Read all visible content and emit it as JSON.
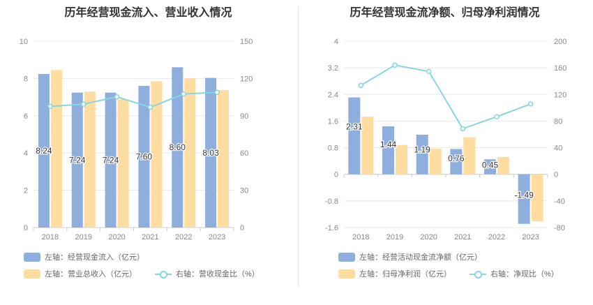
{
  "colors": {
    "bar1": "#8eaedd",
    "bar2": "#ffdca0",
    "line": "#86d6e0",
    "grid": "#e8e8e8",
    "axis": "#cccccc",
    "tick": "#888888"
  },
  "chart_data": [
    {
      "type": "bar",
      "title": "历年经营现金流入、营业收入情况",
      "categories": [
        "2018",
        "2019",
        "2020",
        "2021",
        "2022",
        "2023"
      ],
      "y_left": {
        "ylim": [
          0,
          10
        ],
        "ticks": [
          "0",
          "2",
          "4",
          "6",
          "8",
          "10"
        ]
      },
      "y_right": {
        "ylim": [
          0,
          150
        ],
        "ticks": [
          "0",
          "30",
          "60",
          "90",
          "120",
          "150"
        ]
      },
      "series": [
        {
          "name": "左轴：经营现金流入（亿元）",
          "kind": "bar",
          "axis": "left",
          "color": "#8eaedd",
          "values": [
            8.24,
            7.24,
            7.24,
            7.6,
            8.6,
            8.03
          ],
          "labels": [
            "8.24",
            "7.24",
            "7.24",
            "7.60",
            "8.60",
            "8.03"
          ]
        },
        {
          "name": "左轴：营业总收入（亿元）",
          "kind": "bar",
          "axis": "left",
          "color": "#ffdca0",
          "values": [
            8.45,
            7.29,
            6.88,
            7.85,
            8.0,
            7.38
          ]
        },
        {
          "name": "右轴：营收现金比（%）",
          "kind": "line",
          "axis": "right",
          "color": "#86d6e0",
          "values": [
            97.5,
            99.3,
            105.2,
            96.8,
            107.5,
            108.8
          ]
        }
      ],
      "legend": "bottom"
    },
    {
      "type": "bar",
      "title": "历年经营现金流净额、归母净利润情况",
      "categories": [
        "2018",
        "2019",
        "2020",
        "2021",
        "2022",
        "2023"
      ],
      "y_left": {
        "ylim": [
          -1.6,
          4
        ],
        "ticks": [
          "-1.6",
          "-0.8",
          "0",
          "0.8",
          "1.6",
          "2.4",
          "3.2",
          "4"
        ]
      },
      "y_right": {
        "ylim": [
          -80,
          200
        ],
        "ticks": [
          "-80",
          "-40",
          "0",
          "40",
          "80",
          "120",
          "160",
          "200"
        ]
      },
      "series": [
        {
          "name": "左轴：经营活动现金流净额（亿元）",
          "kind": "bar",
          "axis": "left",
          "color": "#8eaedd",
          "values": [
            2.31,
            1.44,
            1.19,
            0.76,
            0.45,
            -1.49
          ],
          "labels": [
            "2.31",
            "1.44",
            "1.19",
            "0.76",
            "0.45",
            "-1.49"
          ]
        },
        {
          "name": "左轴：归母净利润（亿元）",
          "kind": "bar",
          "axis": "left",
          "color": "#ffdca0",
          "values": [
            1.73,
            0.88,
            0.77,
            1.11,
            0.52,
            -1.41
          ]
        },
        {
          "name": "右轴：净现比（%）",
          "kind": "line",
          "axis": "right",
          "color": "#86d6e0",
          "values": [
            133.5,
            164.0,
            154.5,
            68.5,
            86.5,
            105.7
          ]
        }
      ],
      "legend": "bottom"
    }
  ]
}
